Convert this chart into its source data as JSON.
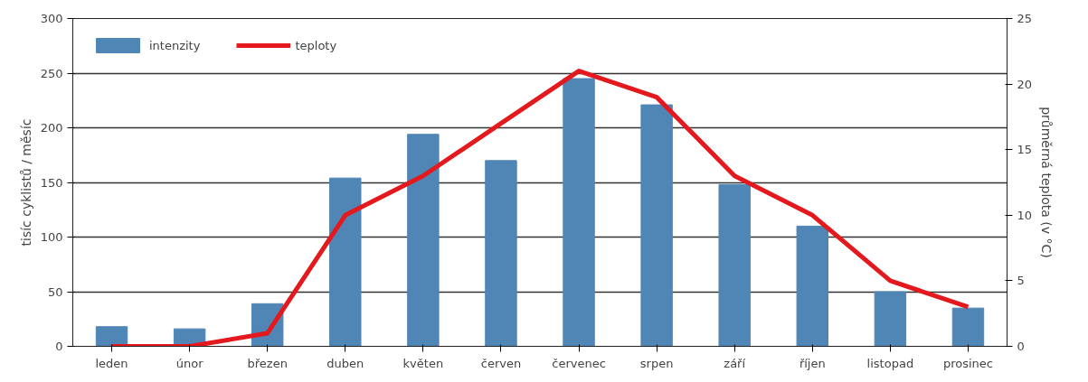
{
  "chart_data": {
    "type": "bar",
    "ylabel": "tisíc cyklistů / měsíc",
    "y2label": "průměrná teplota (v °C)",
    "categories": [
      "leden",
      "únor",
      "březen",
      "duben",
      "květen",
      "červen",
      "červenec",
      "srpen",
      "září",
      "říjen",
      "listopad",
      "prosinec"
    ],
    "series": [
      {
        "name": "intenzity",
        "color": "#4f86b6",
        "values": [
          18,
          16,
          39,
          154,
          194,
          170,
          245,
          221,
          148,
          110,
          50,
          35
        ]
      },
      {
        "name": "teploty",
        "type": "line",
        "axis": "y2",
        "color": "#e3191e",
        "values": [
          0,
          0,
          1,
          10,
          13,
          17,
          21,
          19,
          13,
          10,
          5,
          3
        ]
      }
    ],
    "ylim": [
      0,
      300
    ],
    "yticks": [
      0,
      50,
      100,
      150,
      200,
      250,
      300
    ],
    "y2lim": [
      0,
      25
    ],
    "y2ticks": [
      0,
      5,
      10,
      15,
      20,
      25
    ],
    "grid": "y",
    "legend": "top left"
  }
}
